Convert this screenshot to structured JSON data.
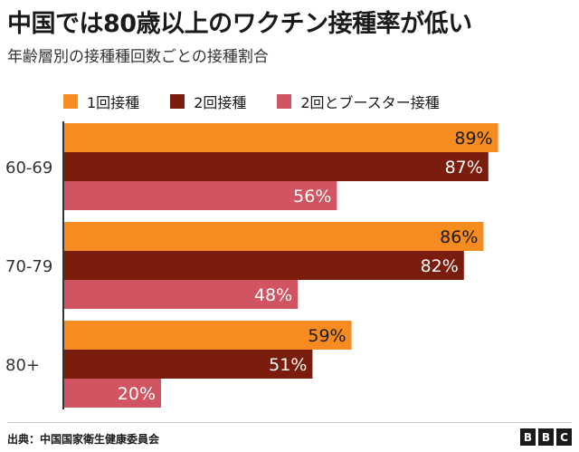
{
  "chart_data": {
    "type": "bar",
    "orientation": "horizontal",
    "title": "中国では80歳以上のワクチン接種率が低い",
    "subtitle": "年齢層別の接種種回数ごとの接種割合",
    "categories": [
      "60-69",
      "70-79",
      "80+"
    ],
    "series": [
      {
        "name": "1回接種",
        "color": "#f68b1f",
        "values": [
          89,
          86,
          59
        ]
      },
      {
        "name": "2回接種",
        "color": "#7a1d0c",
        "values": [
          87,
          82,
          51
        ]
      },
      {
        "name": "2回とブースター接種",
        "color": "#d05461",
        "values": [
          56,
          48,
          20
        ]
      }
    ],
    "unit": "%",
    "xlim": [
      0,
      100
    ],
    "legend": "top",
    "grid": false
  },
  "footer": {
    "source": "出典：中国国家衛生健康委員会",
    "logo": [
      "B",
      "B",
      "C"
    ]
  }
}
